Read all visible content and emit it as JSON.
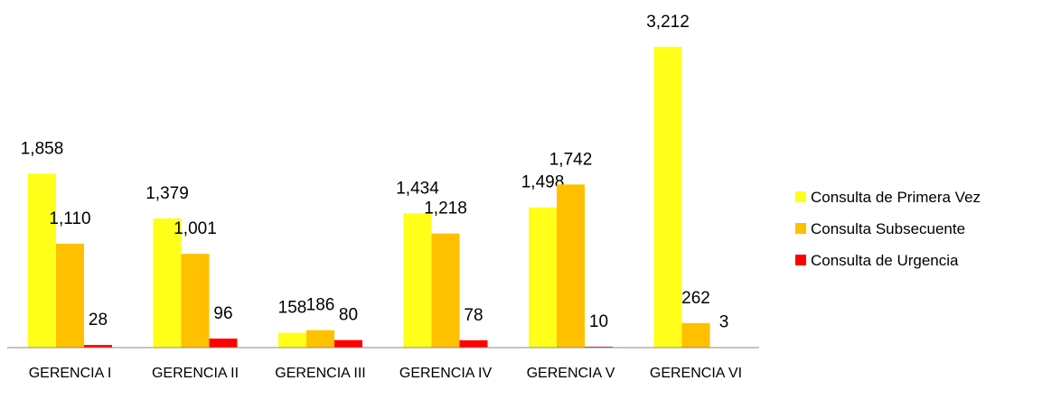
{
  "chart_data": {
    "type": "bar",
    "categories": [
      "GERENCIA I",
      "GERENCIA II",
      "GERENCIA III",
      "GERENCIA IV",
      "GERENCIA V",
      "GERENCIA VI"
    ],
    "series": [
      {
        "name": "Consulta de Primera Vez",
        "color": "#ffff1a",
        "values": [
          1858,
          1379,
          158,
          1434,
          1498,
          3212
        ],
        "value_labels": [
          "1,858",
          "1,379",
          "158",
          "1,434",
          "1,498",
          "3,212"
        ]
      },
      {
        "name": "Consulta Subsecuente",
        "color": "#ffc000",
        "values": [
          1110,
          1001,
          186,
          1218,
          1742,
          262
        ],
        "value_labels": [
          "1,110",
          "1,001",
          "186",
          "1,218",
          "1,742",
          "262"
        ]
      },
      {
        "name": "Consulta de Urgencia",
        "color": "#ff0000",
        "values": [
          28,
          96,
          80,
          78,
          10,
          3
        ],
        "value_labels": [
          "28",
          "96",
          "80",
          "78",
          "10",
          "3"
        ]
      }
    ],
    "ylim": [
      0,
      3500
    ],
    "legend": "right"
  }
}
